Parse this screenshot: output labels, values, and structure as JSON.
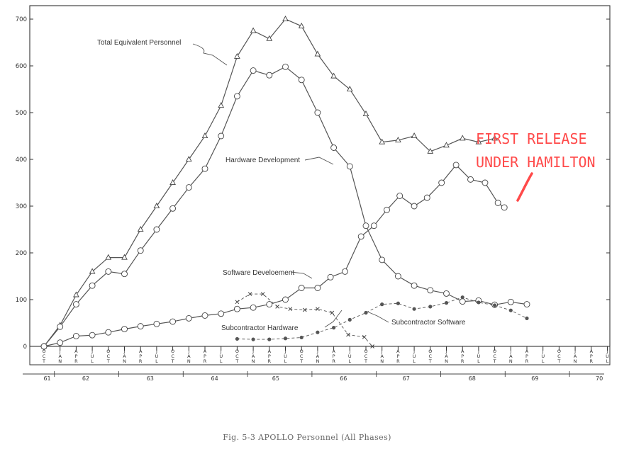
{
  "chart_data": {
    "type": "line",
    "ylim": [
      0,
      700
    ],
    "yticks": [
      0,
      100,
      200,
      300,
      400,
      500,
      600,
      700
    ],
    "x_month_labels": [
      "OCT",
      "JAN",
      "APR",
      "JUL",
      "OCT",
      "JAN",
      "APR",
      "JUL",
      "OCT",
      "JAN",
      "APR",
      "JUL",
      "OCT",
      "JAN",
      "APR",
      "JUL",
      "OCT",
      "JAN",
      "APR",
      "JUL",
      "OCT",
      "JAN",
      "APR",
      "JUL",
      "OCT",
      "JAN",
      "APR",
      "JUL",
      "OCT",
      "JAN",
      "APR",
      "JUL",
      "OCT",
      "JAN",
      "APR",
      "JUL"
    ],
    "year_labels": [
      "61",
      "62",
      "63",
      "64",
      "65",
      "66",
      "67",
      "68",
      "69",
      "70"
    ],
    "series": [
      {
        "name": "Total Equivalent Personnel",
        "marker": "triangle",
        "style": "solid",
        "points": [
          [
            0,
            0
          ],
          [
            1,
            45
          ],
          [
            2,
            110
          ],
          [
            3,
            160
          ],
          [
            4,
            190
          ],
          [
            5,
            190
          ],
          [
            6,
            250
          ],
          [
            7,
            300
          ],
          [
            8,
            350
          ],
          [
            9,
            400
          ],
          [
            10,
            450
          ],
          [
            11,
            515
          ],
          [
            12,
            620
          ],
          [
            13,
            675
          ],
          [
            14,
            658
          ],
          [
            15,
            700
          ],
          [
            16,
            685
          ],
          [
            17,
            625
          ],
          [
            18,
            578
          ],
          [
            19,
            550
          ],
          [
            20,
            497
          ],
          [
            21,
            437
          ],
          [
            22,
            441
          ],
          [
            23,
            450
          ],
          [
            24,
            417
          ],
          [
            25,
            430
          ],
          [
            26,
            445
          ],
          [
            27,
            437
          ],
          [
            28,
            445
          ]
        ]
      },
      {
        "name": "Hardware Development",
        "marker": "circle",
        "style": "solid",
        "points": [
          [
            0,
            0
          ],
          [
            1,
            42
          ],
          [
            2,
            90
          ],
          [
            3,
            130
          ],
          [
            4,
            160
          ],
          [
            5,
            155
          ],
          [
            6,
            205
          ],
          [
            7,
            250
          ],
          [
            8,
            295
          ],
          [
            9,
            340
          ],
          [
            10,
            380
          ],
          [
            11,
            450
          ],
          [
            12,
            535
          ],
          [
            13,
            590
          ],
          [
            14,
            580
          ],
          [
            15,
            598
          ],
          [
            16,
            570
          ],
          [
            17,
            500
          ],
          [
            18,
            425
          ],
          [
            19,
            385
          ],
          [
            20,
            258
          ],
          [
            21,
            185
          ],
          [
            22,
            150
          ],
          [
            23,
            130
          ],
          [
            24,
            120
          ],
          [
            25,
            113
          ],
          [
            26,
            96
          ],
          [
            27,
            98
          ],
          [
            28,
            89
          ],
          [
            29,
            95
          ],
          [
            30,
            90
          ]
        ]
      },
      {
        "name": "Software Development",
        "marker": "circle",
        "style": "solid",
        "points": [
          [
            0,
            0
          ],
          [
            1,
            8
          ],
          [
            2,
            22
          ],
          [
            3,
            24
          ],
          [
            4,
            30
          ],
          [
            5,
            37
          ],
          [
            6,
            43
          ],
          [
            7,
            48
          ],
          [
            8,
            53
          ],
          [
            9,
            60
          ],
          [
            10,
            66
          ],
          [
            11,
            70
          ],
          [
            12,
            80
          ],
          [
            13,
            83
          ],
          [
            14,
            90
          ],
          [
            15,
            100
          ],
          [
            16,
            125
          ],
          [
            17,
            125
          ],
          [
            17.8,
            148
          ],
          [
            18.7,
            160
          ],
          [
            19.7,
            235
          ],
          [
            20.5,
            258
          ],
          [
            21.3,
            292
          ],
          [
            22.1,
            322
          ],
          [
            23,
            300
          ],
          [
            23.8,
            318
          ],
          [
            24.7,
            350
          ],
          [
            25.6,
            388
          ],
          [
            26.5,
            357
          ],
          [
            27.4,
            350
          ],
          [
            28.2,
            307
          ],
          [
            28.6,
            297
          ]
        ]
      },
      {
        "name": "Subcontractor Hardware",
        "marker": "x",
        "style": "dashed",
        "points": [
          [
            12,
            95
          ],
          [
            12.8,
            112
          ],
          [
            13.6,
            112
          ],
          [
            14.5,
            85
          ],
          [
            15.3,
            80
          ],
          [
            16.2,
            78
          ],
          [
            17,
            80
          ],
          [
            17.9,
            72
          ],
          [
            18.9,
            25
          ],
          [
            19.9,
            20
          ],
          [
            20.4,
            0
          ]
        ]
      },
      {
        "name": "Subcontractor Software",
        "marker": "dot",
        "style": "dashed",
        "points": [
          [
            12,
            16
          ],
          [
            13,
            15
          ],
          [
            14,
            15
          ],
          [
            15,
            17
          ],
          [
            16,
            19
          ],
          [
            17,
            30
          ],
          [
            18,
            40
          ],
          [
            19,
            57
          ],
          [
            20,
            72
          ],
          [
            21,
            90
          ],
          [
            22,
            92
          ],
          [
            23,
            80
          ],
          [
            24,
            85
          ],
          [
            25,
            93
          ],
          [
            26,
            105
          ],
          [
            27,
            94
          ],
          [
            28,
            88
          ],
          [
            29,
            77
          ],
          [
            30,
            60
          ]
        ]
      }
    ],
    "annotations": {
      "total": "Total Equivalent Personnel",
      "hardware": "Hardware Development",
      "software": "Software Develoement",
      "sub_hw": "Subcontractor Hardware",
      "sub_sw": "Subcontractor Software"
    },
    "highlight": {
      "line1": "FIRST RELEASE",
      "line2": "UNDER HAMILTON",
      "color": "#ff4a4a"
    },
    "caption": "Fig. 5-3 APOLLO Personnel (All Phases)"
  }
}
